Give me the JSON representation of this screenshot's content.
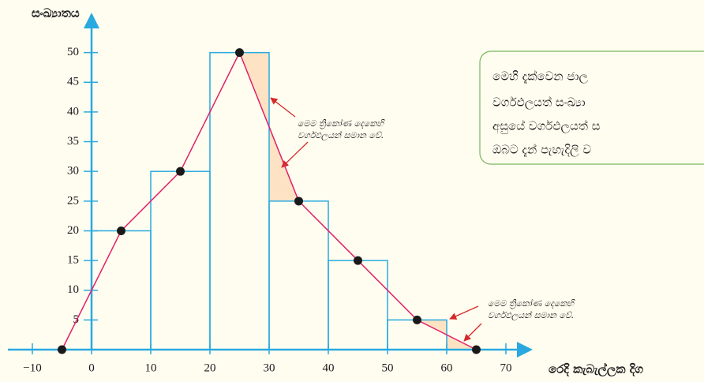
{
  "chart_data": {
    "type": "histogram",
    "ylabel": "සංඛ්‍යාතය",
    "xlabel": "රෙදි කැබැල්ලක දිග",
    "bins": [
      0,
      10,
      20,
      30,
      40,
      50,
      60
    ],
    "values": [
      20,
      30,
      50,
      25,
      15,
      5
    ],
    "polygon": {
      "x": [
        -5,
        5,
        15,
        25,
        35,
        45,
        55,
        65
      ],
      "y": [
        0,
        20,
        30,
        50,
        25,
        15,
        5,
        0
      ]
    },
    "bar_color": "#29a9e0",
    "line_color": "#e0206a",
    "shade_color": "#fde3c4",
    "xlim": [
      -14,
      72
    ],
    "ylim": [
      0,
      55
    ],
    "xticks": [
      {
        "value": -10,
        "label": "−10"
      },
      0,
      10,
      20,
      30,
      40,
      50,
      60,
      70
    ],
    "yticks": [
      5,
      10,
      15,
      20,
      25,
      30,
      35,
      40,
      45,
      50
    ],
    "annotations": [
      [
        "මෙම ත්‍රිකෝණ දෙකෙහි",
        "වර්ගඵලයන් සමාන වේ."
      ],
      [
        "මෙම ත්‍රිකෝණ දෙකෙහි",
        "වර්ගඵලයන් සමාන වේ."
      ]
    ],
    "note_box": [
      "මෙහි දැක්වෙන ජාල",
      "වර්ගඵලයත් සංඛ්‍යා",
      "අසුයේ වර්ගඵලයත් ස",
      "ඔබට දැන් පැහැදිලි ව"
    ]
  }
}
